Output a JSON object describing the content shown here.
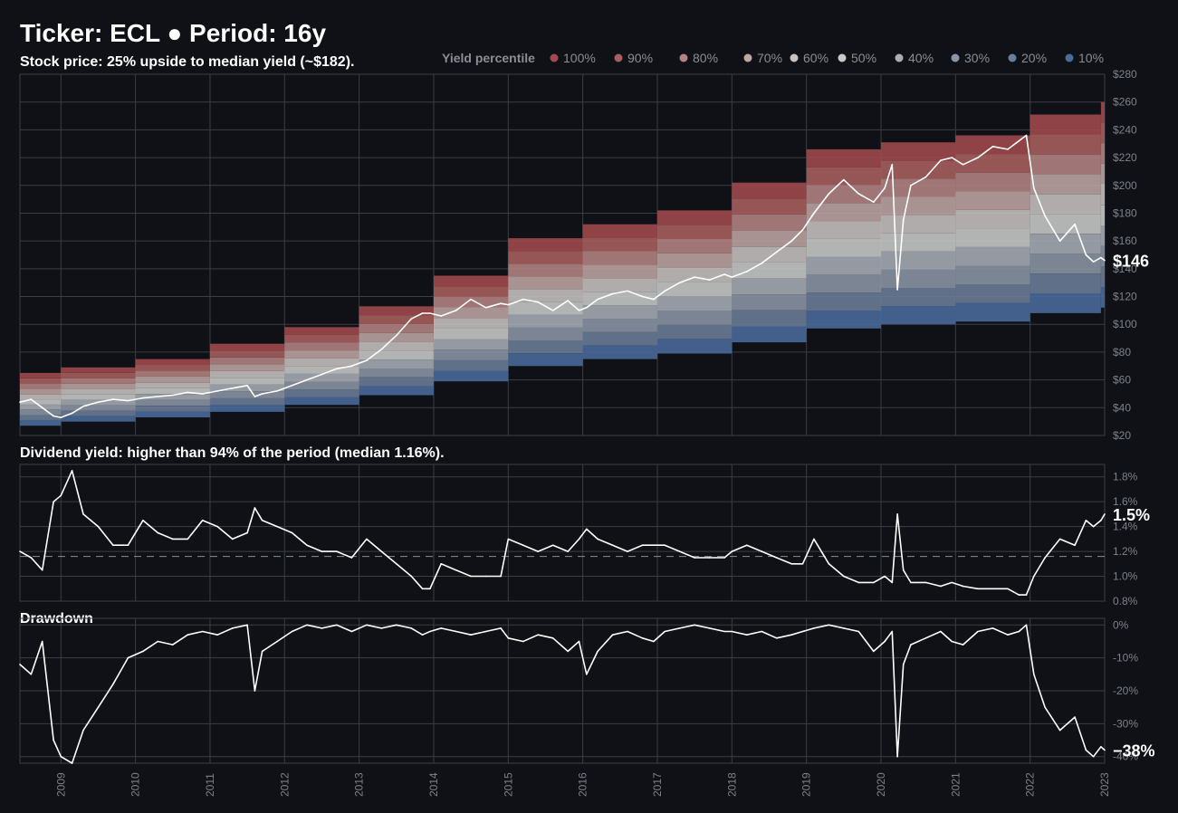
{
  "title": "Ticker: ECL  ●  Period: 16y",
  "legend": {
    "title": "Yield percentile",
    "items": [
      {
        "label": "100%",
        "color": "#a24a4d"
      },
      {
        "label": "90%",
        "color": "#a8605f"
      },
      {
        "label": "80%",
        "color": "#b48383"
      },
      {
        "label": "70%",
        "color": "#bfa5a4"
      },
      {
        "label": "60%",
        "color": "#c8c2c1"
      },
      {
        "label": "50%",
        "color": "#c9c9ca"
      },
      {
        "label": "40%",
        "color": "#a9adb6"
      },
      {
        "label": "30%",
        "color": "#8c95a6"
      },
      {
        "label": "20%",
        "color": "#6b7d98"
      },
      {
        "label": "10%",
        "color": "#4a6b9c"
      }
    ]
  },
  "chart_data": [
    {
      "type": "line",
      "panel": "price",
      "subtitle": "Stock price:  25% upside to median yield (~$182).",
      "ylim": [
        20,
        280
      ],
      "yticks": [
        "$20",
        "$40",
        "$60",
        "$80",
        "$100",
        "$120",
        "$140",
        "$160",
        "$180",
        "$200",
        "$220",
        "$240",
        "$260",
        "$280"
      ],
      "last_label": "$146",
      "xlim": [
        2008.45,
        2023.0
      ],
      "x_ticks": [
        "2009",
        "2010",
        "2011",
        "2012",
        "2013",
        "2014",
        "2015",
        "2016",
        "2017",
        "2018",
        "2019",
        "2020",
        "2021",
        "2022",
        "2023"
      ],
      "bands": [
        {
          "x0": 2008.45,
          "x1": 2009.0,
          "lo": 27,
          "hi": 65
        },
        {
          "x0": 2009.0,
          "x1": 2010.0,
          "lo": 30,
          "hi": 69
        },
        {
          "x0": 2010.0,
          "x1": 2011.0,
          "lo": 33,
          "hi": 75
        },
        {
          "x0": 2011.0,
          "x1": 2012.0,
          "lo": 37,
          "hi": 86
        },
        {
          "x0": 2012.0,
          "x1": 2013.0,
          "lo": 42,
          "hi": 98
        },
        {
          "x0": 2013.0,
          "x1": 2014.0,
          "lo": 49,
          "hi": 113
        },
        {
          "x0": 2014.0,
          "x1": 2015.0,
          "lo": 59,
          "hi": 135
        },
        {
          "x0": 2015.0,
          "x1": 2016.0,
          "lo": 70,
          "hi": 162
        },
        {
          "x0": 2016.0,
          "x1": 2017.0,
          "lo": 75,
          "hi": 172
        },
        {
          "x0": 2017.0,
          "x1": 2018.0,
          "lo": 79,
          "hi": 182
        },
        {
          "x0": 2018.0,
          "x1": 2019.0,
          "lo": 87,
          "hi": 202
        },
        {
          "x0": 2019.0,
          "x1": 2020.0,
          "lo": 97,
          "hi": 226
        },
        {
          "x0": 2020.0,
          "x1": 2021.0,
          "lo": 100,
          "hi": 231
        },
        {
          "x0": 2021.0,
          "x1": 2022.0,
          "lo": 102,
          "hi": 236
        },
        {
          "x0": 2022.0,
          "x1": 2022.95,
          "lo": 108,
          "hi": 251
        },
        {
          "x0": 2022.95,
          "x1": 2023.0,
          "lo": 112,
          "hi": 260
        }
      ],
      "x": [
        2008.45,
        2008.6,
        2008.75,
        2008.9,
        2009.0,
        2009.15,
        2009.3,
        2009.5,
        2009.7,
        2009.9,
        2010.1,
        2010.3,
        2010.5,
        2010.7,
        2010.9,
        2011.1,
        2011.3,
        2011.5,
        2011.6,
        2011.7,
        2011.9,
        2012.1,
        2012.3,
        2012.5,
        2012.7,
        2012.9,
        2013.1,
        2013.3,
        2013.5,
        2013.7,
        2013.85,
        2013.95,
        2014.1,
        2014.3,
        2014.5,
        2014.7,
        2014.9,
        2015.0,
        2015.2,
        2015.4,
        2015.6,
        2015.8,
        2015.95,
        2016.05,
        2016.2,
        2016.4,
        2016.6,
        2016.8,
        2016.95,
        2017.1,
        2017.3,
        2017.5,
        2017.7,
        2017.9,
        2018.0,
        2018.2,
        2018.4,
        2018.6,
        2018.8,
        2018.95,
        2019.1,
        2019.3,
        2019.5,
        2019.7,
        2019.9,
        2020.05,
        2020.15,
        2020.22,
        2020.3,
        2020.4,
        2020.6,
        2020.8,
        2020.95,
        2021.1,
        2021.3,
        2021.5,
        2021.7,
        2021.85,
        2021.95,
        2022.05,
        2022.2,
        2022.4,
        2022.6,
        2022.75,
        2022.85,
        2022.95,
        2023.0
      ],
      "y": [
        44,
        46,
        40,
        34,
        33,
        36,
        41,
        44,
        46,
        45,
        47,
        48,
        49,
        51,
        50,
        52,
        54,
        56,
        48,
        50,
        52,
        56,
        60,
        64,
        68,
        70,
        74,
        82,
        92,
        104,
        108,
        108,
        106,
        110,
        118,
        112,
        115,
        114,
        118,
        116,
        110,
        117,
        110,
        112,
        118,
        122,
        124,
        120,
        118,
        124,
        130,
        134,
        132,
        136,
        134,
        138,
        144,
        152,
        160,
        168,
        180,
        194,
        204,
        194,
        188,
        198,
        215,
        125,
        175,
        200,
        206,
        218,
        220,
        215,
        220,
        228,
        226,
        232,
        236,
        198,
        178,
        160,
        172,
        150,
        145,
        148,
        146
      ]
    },
    {
      "type": "line",
      "panel": "yield",
      "subtitle": "Dividend yield: higher than 94% of the period (median 1.16%).",
      "ylim": [
        0.8,
        1.9
      ],
      "yticks": [
        "0.8%",
        "1.0%",
        "1.2%",
        "1.4%",
        "1.6%",
        "1.8%"
      ],
      "median": 1.16,
      "last_label": "1.5%",
      "x": [
        2008.45,
        2008.6,
        2008.75,
        2008.9,
        2009.0,
        2009.15,
        2009.3,
        2009.5,
        2009.7,
        2009.9,
        2010.1,
        2010.3,
        2010.5,
        2010.7,
        2010.9,
        2011.1,
        2011.3,
        2011.5,
        2011.6,
        2011.7,
        2011.9,
        2012.1,
        2012.3,
        2012.5,
        2012.7,
        2012.9,
        2013.1,
        2013.3,
        2013.5,
        2013.7,
        2013.85,
        2013.95,
        2014.1,
        2014.3,
        2014.5,
        2014.7,
        2014.9,
        2015.0,
        2015.2,
        2015.4,
        2015.6,
        2015.8,
        2015.95,
        2016.05,
        2016.2,
        2016.4,
        2016.6,
        2016.8,
        2016.95,
        2017.1,
        2017.3,
        2017.5,
        2017.7,
        2017.9,
        2018.0,
        2018.2,
        2018.4,
        2018.6,
        2018.8,
        2018.95,
        2019.1,
        2019.3,
        2019.5,
        2019.7,
        2019.9,
        2020.05,
        2020.15,
        2020.22,
        2020.3,
        2020.4,
        2020.6,
        2020.8,
        2020.95,
        2021.1,
        2021.3,
        2021.5,
        2021.7,
        2021.85,
        2021.95,
        2022.05,
        2022.2,
        2022.4,
        2022.6,
        2022.75,
        2022.85,
        2022.95,
        2023.0
      ],
      "y": [
        1.2,
        1.15,
        1.05,
        1.6,
        1.65,
        1.85,
        1.5,
        1.4,
        1.25,
        1.25,
        1.45,
        1.35,
        1.3,
        1.3,
        1.45,
        1.4,
        1.3,
        1.35,
        1.55,
        1.45,
        1.4,
        1.35,
        1.25,
        1.2,
        1.2,
        1.15,
        1.3,
        1.2,
        1.1,
        1.0,
        0.9,
        0.9,
        1.1,
        1.05,
        1.0,
        1.0,
        1.0,
        1.3,
        1.25,
        1.2,
        1.25,
        1.2,
        1.3,
        1.38,
        1.3,
        1.25,
        1.2,
        1.25,
        1.25,
        1.25,
        1.2,
        1.15,
        1.15,
        1.15,
        1.2,
        1.25,
        1.2,
        1.15,
        1.1,
        1.1,
        1.3,
        1.1,
        1.0,
        0.95,
        0.95,
        1.0,
        0.95,
        1.5,
        1.05,
        0.95,
        0.95,
        0.92,
        0.95,
        0.92,
        0.9,
        0.9,
        0.9,
        0.85,
        0.85,
        1.0,
        1.15,
        1.3,
        1.25,
        1.45,
        1.4,
        1.45,
        1.5
      ]
    },
    {
      "type": "line",
      "panel": "drawdown",
      "subtitle": "Drawdown",
      "ylim": [
        -42,
        2
      ],
      "yticks": [
        "-40%",
        "-30%",
        "-20%",
        "-10%",
        "0%"
      ],
      "last_label": "−38%",
      "x": [
        2008.45,
        2008.6,
        2008.75,
        2008.9,
        2009.0,
        2009.15,
        2009.3,
        2009.5,
        2009.7,
        2009.9,
        2010.1,
        2010.3,
        2010.5,
        2010.7,
        2010.9,
        2011.1,
        2011.3,
        2011.5,
        2011.6,
        2011.7,
        2011.9,
        2012.1,
        2012.3,
        2012.5,
        2012.7,
        2012.9,
        2013.1,
        2013.3,
        2013.5,
        2013.7,
        2013.85,
        2013.95,
        2014.1,
        2014.3,
        2014.5,
        2014.7,
        2014.9,
        2015.0,
        2015.2,
        2015.4,
        2015.6,
        2015.8,
        2015.95,
        2016.05,
        2016.2,
        2016.4,
        2016.6,
        2016.8,
        2016.95,
        2017.1,
        2017.3,
        2017.5,
        2017.7,
        2017.9,
        2018.0,
        2018.2,
        2018.4,
        2018.6,
        2018.8,
        2018.95,
        2019.1,
        2019.3,
        2019.5,
        2019.7,
        2019.9,
        2020.05,
        2020.15,
        2020.22,
        2020.3,
        2020.4,
        2020.6,
        2020.8,
        2020.95,
        2021.1,
        2021.3,
        2021.5,
        2021.7,
        2021.85,
        2021.95,
        2022.05,
        2022.2,
        2022.4,
        2022.6,
        2022.75,
        2022.85,
        2022.95,
        2023.0
      ],
      "y": [
        -12,
        -15,
        -5,
        -35,
        -40,
        -42,
        -32,
        -25,
        -18,
        -10,
        -8,
        -5,
        -6,
        -3,
        -2,
        -3,
        -1,
        0,
        -20,
        -8,
        -5,
        -2,
        0,
        -1,
        0,
        -2,
        0,
        -1,
        0,
        -1,
        -3,
        -2,
        -1,
        -2,
        -3,
        -2,
        -1,
        -4,
        -5,
        -3,
        -4,
        -8,
        -5,
        -15,
        -8,
        -3,
        -2,
        -4,
        -5,
        -2,
        -1,
        0,
        -1,
        -2,
        -2,
        -3,
        -2,
        -4,
        -3,
        -2,
        -1,
        0,
        -1,
        -2,
        -8,
        -5,
        -2,
        -40,
        -12,
        -6,
        -4,
        -2,
        -5,
        -6,
        -2,
        -1,
        -3,
        -2,
        0,
        -15,
        -25,
        -32,
        -28,
        -38,
        -40,
        -37,
        -38
      ]
    }
  ]
}
